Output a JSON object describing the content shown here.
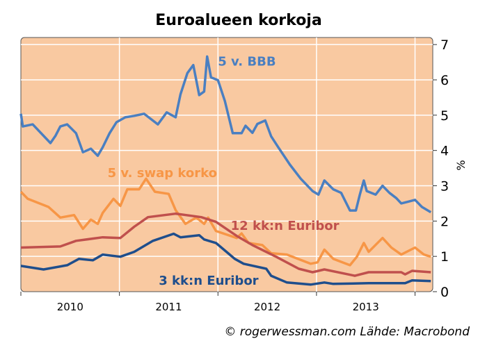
{
  "chart_data": {
    "type": "line",
    "title": "Euroalueen korkoja",
    "xlabel": "",
    "ylabel": "%",
    "xlim": [
      2010.0,
      2014.18
    ],
    "ylim": [
      0,
      7.2
    ],
    "x_ticks": [
      2010,
      2011,
      2012,
      2013,
      2014
    ],
    "x_tick_labels": [
      "2010",
      "2011",
      "2012",
      "2013"
    ],
    "y_ticks": [
      0,
      1,
      2,
      3,
      4,
      5,
      6,
      7
    ],
    "y_tick_labels": [
      "0",
      "1",
      "2",
      "3",
      "4",
      "5",
      "6",
      "7"
    ],
    "grid": true,
    "plot_background": "#f9c9a1",
    "series": [
      {
        "name": "5 v. BBB",
        "color": "#4a7fc1",
        "label_pos": [
          2012.0,
          6.4
        ],
        "points": [
          [
            2010.0,
            5.04
          ],
          [
            2010.02,
            4.68
          ],
          [
            2010.12,
            4.74
          ],
          [
            2010.3,
            4.21
          ],
          [
            2010.35,
            4.41
          ],
          [
            2010.4,
            4.68
          ],
          [
            2010.47,
            4.74
          ],
          [
            2010.56,
            4.49
          ],
          [
            2010.63,
            3.95
          ],
          [
            2010.71,
            4.05
          ],
          [
            2010.78,
            3.85
          ],
          [
            2010.83,
            4.09
          ],
          [
            2010.9,
            4.49
          ],
          [
            2010.97,
            4.8
          ],
          [
            2011.06,
            4.94
          ],
          [
            2011.15,
            4.98
          ],
          [
            2011.25,
            5.04
          ],
          [
            2011.39,
            4.74
          ],
          [
            2011.48,
            5.08
          ],
          [
            2011.57,
            4.94
          ],
          [
            2011.62,
            5.59
          ],
          [
            2011.69,
            6.19
          ],
          [
            2011.75,
            6.42
          ],
          [
            2011.81,
            5.57
          ],
          [
            2011.86,
            5.67
          ],
          [
            2011.89,
            6.66
          ],
          [
            2011.93,
            6.07
          ],
          [
            2012.0,
            5.99
          ],
          [
            2012.07,
            5.4
          ],
          [
            2012.15,
            4.49
          ],
          [
            2012.24,
            4.49
          ],
          [
            2012.28,
            4.7
          ],
          [
            2012.35,
            4.5
          ],
          [
            2012.4,
            4.75
          ],
          [
            2012.48,
            4.85
          ],
          [
            2012.54,
            4.4
          ],
          [
            2012.61,
            4.1
          ],
          [
            2012.73,
            3.6
          ],
          [
            2012.84,
            3.2
          ],
          [
            2012.96,
            2.85
          ],
          [
            2013.02,
            2.75
          ],
          [
            2013.08,
            3.15
          ],
          [
            2013.17,
            2.9
          ],
          [
            2013.25,
            2.8
          ],
          [
            2013.34,
            2.3
          ],
          [
            2013.4,
            2.3
          ],
          [
            2013.44,
            2.75
          ],
          [
            2013.48,
            3.15
          ],
          [
            2013.51,
            2.85
          ],
          [
            2013.6,
            2.75
          ],
          [
            2013.67,
            3.0
          ],
          [
            2013.74,
            2.8
          ],
          [
            2013.81,
            2.65
          ],
          [
            2013.86,
            2.5
          ],
          [
            2013.93,
            2.55
          ],
          [
            2014.0,
            2.6
          ],
          [
            2014.07,
            2.4
          ],
          [
            2014.16,
            2.25
          ]
        ]
      },
      {
        "name": "5 v. swap korko",
        "color": "#f79646",
        "label_pos": [
          2010.88,
          3.25
        ],
        "points": [
          [
            2010.0,
            2.83
          ],
          [
            2010.07,
            2.63
          ],
          [
            2010.28,
            2.4
          ],
          [
            2010.4,
            2.1
          ],
          [
            2010.54,
            2.17
          ],
          [
            2010.63,
            1.78
          ],
          [
            2010.71,
            2.04
          ],
          [
            2010.78,
            1.92
          ],
          [
            2010.83,
            2.23
          ],
          [
            2010.94,
            2.63
          ],
          [
            2011.01,
            2.43
          ],
          [
            2011.08,
            2.9
          ],
          [
            2011.2,
            2.9
          ],
          [
            2011.27,
            3.2
          ],
          [
            2011.36,
            2.83
          ],
          [
            2011.5,
            2.77
          ],
          [
            2011.57,
            2.31
          ],
          [
            2011.67,
            1.92
          ],
          [
            2011.78,
            2.1
          ],
          [
            2011.86,
            1.92
          ],
          [
            2011.9,
            2.1
          ],
          [
            2011.98,
            1.72
          ],
          [
            2012.19,
            1.52
          ],
          [
            2012.24,
            1.65
          ],
          [
            2012.31,
            1.38
          ],
          [
            2012.45,
            1.32
          ],
          [
            2012.54,
            1.09
          ],
          [
            2012.7,
            1.05
          ],
          [
            2012.94,
            0.79
          ],
          [
            2013.01,
            0.83
          ],
          [
            2013.08,
            1.19
          ],
          [
            2013.17,
            0.93
          ],
          [
            2013.34,
            0.75
          ],
          [
            2013.41,
            0.99
          ],
          [
            2013.48,
            1.38
          ],
          [
            2013.53,
            1.13
          ],
          [
            2013.67,
            1.52
          ],
          [
            2013.76,
            1.25
          ],
          [
            2013.86,
            1.05
          ],
          [
            2014.0,
            1.25
          ],
          [
            2014.09,
            1.05
          ],
          [
            2014.16,
            0.99
          ]
        ]
      },
      {
        "name": "12 kk:n Euribor",
        "color": "#c0504d",
        "label_pos": [
          2012.13,
          1.75
        ],
        "points": [
          [
            2010.0,
            1.25
          ],
          [
            2010.4,
            1.28
          ],
          [
            2010.56,
            1.44
          ],
          [
            2010.83,
            1.54
          ],
          [
            2011.01,
            1.52
          ],
          [
            2011.15,
            1.84
          ],
          [
            2011.29,
            2.11
          ],
          [
            2011.57,
            2.21
          ],
          [
            2011.83,
            2.11
          ],
          [
            2011.98,
            1.98
          ],
          [
            2012.19,
            1.58
          ],
          [
            2012.35,
            1.32
          ],
          [
            2012.59,
            0.99
          ],
          [
            2012.82,
            0.65
          ],
          [
            2012.96,
            0.55
          ],
          [
            2013.08,
            0.63
          ],
          [
            2013.39,
            0.45
          ],
          [
            2013.53,
            0.55
          ],
          [
            2013.86,
            0.55
          ],
          [
            2013.9,
            0.49
          ],
          [
            2013.97,
            0.59
          ],
          [
            2014.16,
            0.55
          ]
        ]
      },
      {
        "name": "3 kk:n Euribor",
        "color": "#1f4e8c",
        "label_pos": [
          2011.4,
          0.2
        ],
        "points": [
          [
            2010.0,
            0.73
          ],
          [
            2010.23,
            0.63
          ],
          [
            2010.47,
            0.75
          ],
          [
            2010.59,
            0.93
          ],
          [
            2010.73,
            0.89
          ],
          [
            2010.83,
            1.05
          ],
          [
            2011.01,
            0.99
          ],
          [
            2011.15,
            1.13
          ],
          [
            2011.34,
            1.44
          ],
          [
            2011.55,
            1.64
          ],
          [
            2011.62,
            1.54
          ],
          [
            2011.81,
            1.6
          ],
          [
            2011.86,
            1.48
          ],
          [
            2011.98,
            1.38
          ],
          [
            2012.17,
            0.93
          ],
          [
            2012.12,
            1.05
          ],
          [
            2012.26,
            0.79
          ],
          [
            2012.49,
            0.65
          ],
          [
            2012.54,
            0.45
          ],
          [
            2012.7,
            0.26
          ],
          [
            2012.94,
            0.2
          ],
          [
            2013.08,
            0.26
          ],
          [
            2013.17,
            0.22
          ],
          [
            2013.53,
            0.24
          ],
          [
            2013.9,
            0.24
          ],
          [
            2013.97,
            0.32
          ],
          [
            2014.16,
            0.3
          ]
        ]
      }
    ],
    "footer": "© rogerwessman.com Lähde: Macrobond"
  }
}
